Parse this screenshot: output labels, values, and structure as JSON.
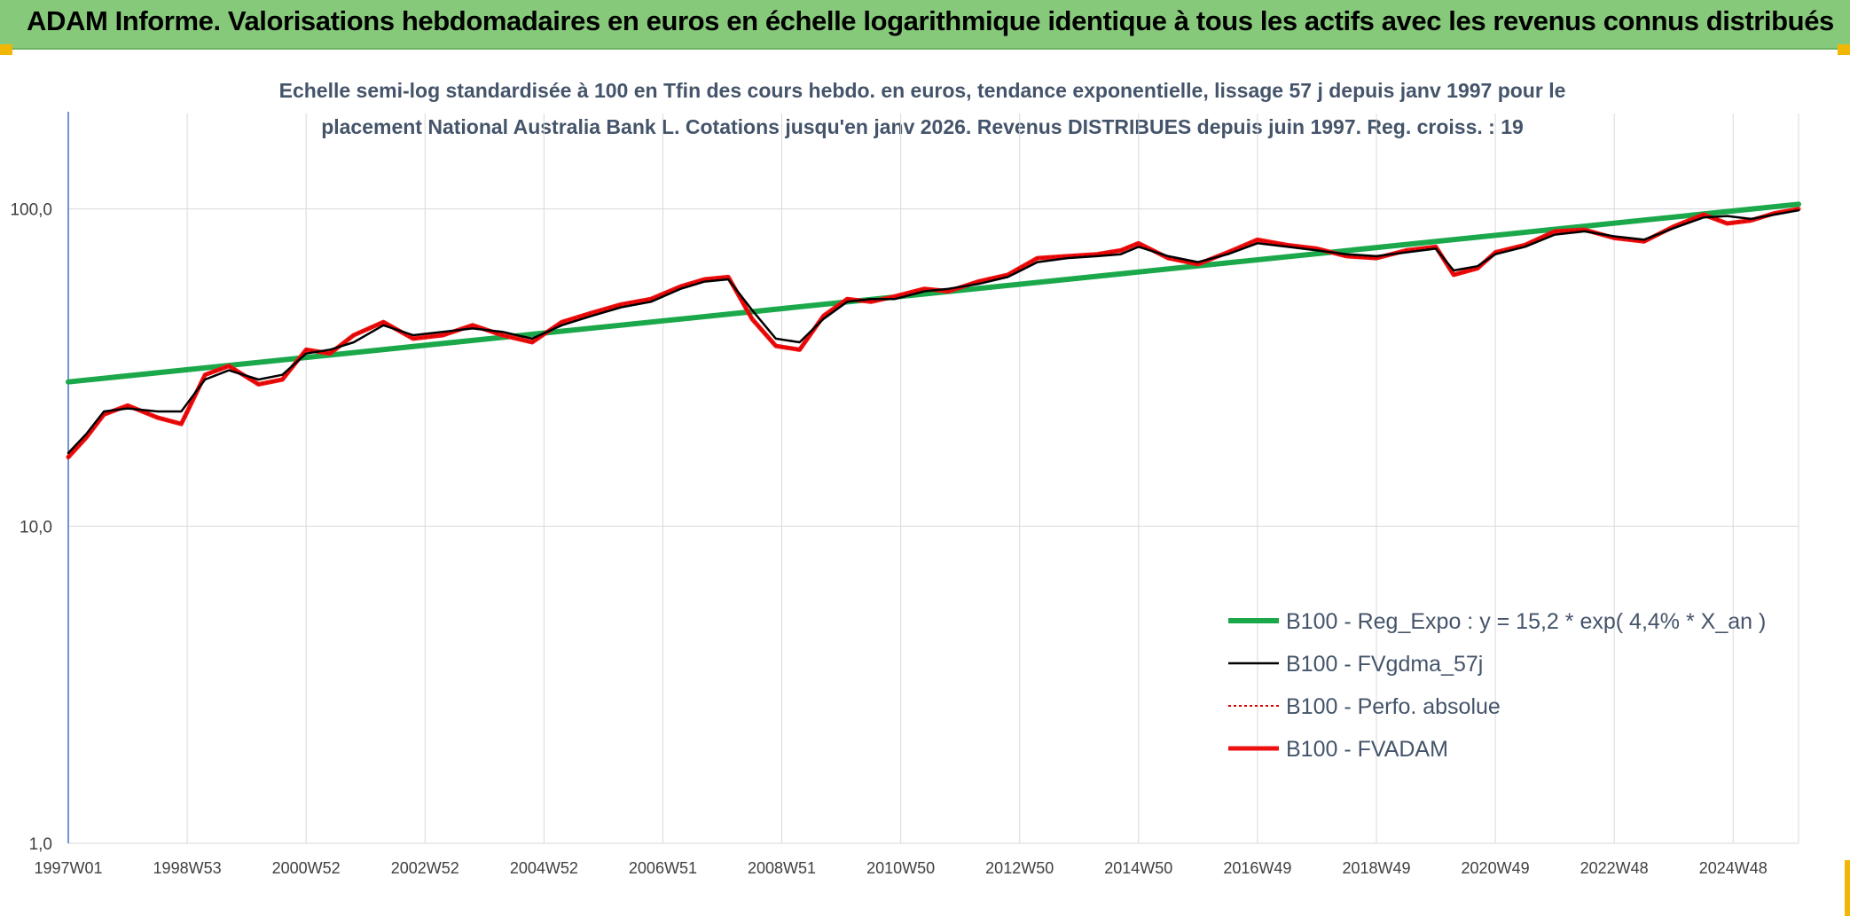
{
  "banner": {
    "title": "ADAM Informe. Valorisations hebdomadaires en euros en échelle logarithmique identique à tous les actifs avec les revenus connus distribués"
  },
  "colors": {
    "banner_bg": "#86c97a",
    "regression": "#1aa84a",
    "moving_avg": "#000000",
    "perfo": "#e00000",
    "fvadam": "#ee1111",
    "grid": "#d9d9d9",
    "corner": "#f2b705"
  },
  "chart_data": {
    "type": "line",
    "title_line1": "Echelle semi-log standardisée à 100 en Tfin des cours hebdo. en euros, tendance exponentielle, lissage 57 j depuis janv 1997 pour le",
    "title_line2": "placement National Australia Bank L. Cotations jusqu'en janv 2026. Revenus DISTRIBUES depuis juin 1997. Reg. croiss. : 19",
    "y_scale": "log",
    "ylim": [
      1,
      200
    ],
    "y_ticks": [
      {
        "value": 100,
        "label": "100,0"
      },
      {
        "value": 10,
        "label": "10,0"
      },
      {
        "value": 1,
        "label": "1,0"
      }
    ],
    "xlim": [
      1997.0,
      2026.1
    ],
    "x_ticks": [
      {
        "value": 1997.0,
        "label": "1997W01"
      },
      {
        "value": 1999.0,
        "label": "1998W53"
      },
      {
        "value": 2001.0,
        "label": "2000W52"
      },
      {
        "value": 2003.0,
        "label": "2002W52"
      },
      {
        "value": 2005.0,
        "label": "2004W52"
      },
      {
        "value": 2007.0,
        "label": "2006W51"
      },
      {
        "value": 2009.0,
        "label": "2008W51"
      },
      {
        "value": 2011.0,
        "label": "2010W50"
      },
      {
        "value": 2013.0,
        "label": "2012W50"
      },
      {
        "value": 2015.0,
        "label": "2014W50"
      },
      {
        "value": 2017.0,
        "label": "2016W49"
      },
      {
        "value": 2019.0,
        "label": "2018W49"
      },
      {
        "value": 2021.0,
        "label": "2020W49"
      },
      {
        "value": 2023.0,
        "label": "2022W48"
      },
      {
        "value": 2025.0,
        "label": "2024W48"
      }
    ],
    "legend_position": "bottom-right",
    "series": [
      {
        "name": "B100 - Reg_Expo : y = 15,2 * exp( 4,4% *  X_an )",
        "style": "thick-green",
        "x": [
          1997.0,
          2026.1
        ],
        "values": [
          28.5,
          103.5
        ]
      },
      {
        "name": "B100 - FVgdma_57j",
        "style": "thin-black",
        "x": [
          1997.0,
          1997.3,
          1997.6,
          1998.0,
          1998.5,
          1998.9,
          1999.3,
          1999.7,
          2000.2,
          2000.6,
          2001.0,
          2001.4,
          2001.8,
          2002.3,
          2002.8,
          2003.3,
          2003.8,
          2004.3,
          2004.8,
          2005.3,
          2005.8,
          2006.3,
          2006.8,
          2007.3,
          2007.7,
          2008.1,
          2008.5,
          2008.9,
          2009.3,
          2009.7,
          2010.1,
          2010.5,
          2010.9,
          2011.4,
          2011.8,
          2012.3,
          2012.8,
          2013.3,
          2013.8,
          2014.3,
          2014.7,
          2015.0,
          2015.5,
          2016.0,
          2016.5,
          2017.0,
          2017.5,
          2018.0,
          2018.5,
          2019.0,
          2019.5,
          2020.0,
          2020.3,
          2020.7,
          2021.0,
          2021.5,
          2022.0,
          2022.5,
          2023.0,
          2023.5,
          2024.0,
          2024.5,
          2024.9,
          2025.3,
          2025.7,
          2026.1
        ],
        "values": [
          17.0,
          19.5,
          23.0,
          23.5,
          23.0,
          23.0,
          29.0,
          31.0,
          29.0,
          30.0,
          35.0,
          36.0,
          38.0,
          43.0,
          40.0,
          41.0,
          42.0,
          41.0,
          39.0,
          43.0,
          46.0,
          49.0,
          51.0,
          56.0,
          59.0,
          60.0,
          48.0,
          39.0,
          38.0,
          45.0,
          51.0,
          52.0,
          52.0,
          55.0,
          56.0,
          58.0,
          61.0,
          68.0,
          70.0,
          71.0,
          72.0,
          76.0,
          71.0,
          68.0,
          72.0,
          78.0,
          76.0,
          74.0,
          72.0,
          71.0,
          73.0,
          75.0,
          64.0,
          66.0,
          72.0,
          76.0,
          83.0,
          85.0,
          82.0,
          80.0,
          87.0,
          94.0,
          95.0,
          93.0,
          96.0,
          99.0
        ]
      },
      {
        "name": "B100 - Perfo. absolue",
        "style": "dotted-red",
        "x": [
          1997.0,
          1997.3,
          1997.6,
          1998.0,
          1998.5,
          1998.9,
          1999.3,
          1999.7,
          2000.2,
          2000.6,
          2001.0,
          2001.4,
          2001.8,
          2002.3,
          2002.8,
          2003.3,
          2003.8,
          2004.3,
          2004.8,
          2005.3,
          2005.8,
          2006.3,
          2006.8,
          2007.3,
          2007.7,
          2008.1,
          2008.5,
          2008.9,
          2009.3,
          2009.7,
          2010.1,
          2010.5,
          2010.9,
          2011.4,
          2011.8,
          2012.3,
          2012.8,
          2013.3,
          2013.8,
          2014.3,
          2014.7,
          2015.0,
          2015.5,
          2016.0,
          2016.5,
          2017.0,
          2017.5,
          2018.0,
          2018.5,
          2019.0,
          2019.5,
          2020.0,
          2020.3,
          2020.7,
          2021.0,
          2021.5,
          2022.0,
          2022.5,
          2023.0,
          2023.5,
          2024.0,
          2024.5,
          2024.9,
          2025.3,
          2025.7,
          2026.1
        ],
        "values": [
          16.5,
          19.0,
          22.5,
          24.0,
          22.0,
          21.0,
          30.0,
          32.0,
          28.0,
          29.0,
          36.0,
          35.0,
          40.0,
          44.0,
          39.0,
          40.0,
          43.0,
          40.0,
          38.0,
          44.0,
          47.0,
          50.0,
          52.0,
          57.0,
          60.0,
          61.0,
          45.0,
          37.0,
          36.0,
          46.0,
          52.0,
          51.0,
          53.0,
          56.0,
          55.0,
          59.0,
          62.0,
          70.0,
          71.0,
          72.0,
          74.0,
          78.0,
          70.0,
          67.0,
          73.0,
          80.0,
          77.0,
          75.0,
          71.0,
          70.0,
          74.0,
          76.0,
          62.0,
          65.0,
          73.0,
          77.0,
          85.0,
          86.0,
          81.0,
          79.0,
          88.0,
          96.0,
          90.0,
          92.0,
          97.0,
          100.0
        ]
      },
      {
        "name": "B100 - FVADAM",
        "style": "thick-red",
        "x": [
          1997.0,
          1997.3,
          1997.6,
          1998.0,
          1998.5,
          1998.9,
          1999.3,
          1999.7,
          2000.2,
          2000.6,
          2001.0,
          2001.4,
          2001.8,
          2002.3,
          2002.8,
          2003.3,
          2003.8,
          2004.3,
          2004.8,
          2005.3,
          2005.8,
          2006.3,
          2006.8,
          2007.3,
          2007.7,
          2008.1,
          2008.5,
          2008.9,
          2009.3,
          2009.7,
          2010.1,
          2010.5,
          2010.9,
          2011.4,
          2011.8,
          2012.3,
          2012.8,
          2013.3,
          2013.8,
          2014.3,
          2014.7,
          2015.0,
          2015.5,
          2016.0,
          2016.5,
          2017.0,
          2017.5,
          2018.0,
          2018.5,
          2019.0,
          2019.5,
          2020.0,
          2020.3,
          2020.7,
          2021.0,
          2021.5,
          2022.0,
          2022.5,
          2023.0,
          2023.5,
          2024.0,
          2024.5,
          2024.9,
          2025.3,
          2025.7,
          2026.1
        ],
        "values": [
          16.5,
          19.0,
          22.5,
          24.0,
          22.0,
          21.0,
          30.0,
          32.0,
          28.0,
          29.0,
          36.0,
          35.0,
          40.0,
          44.0,
          39.0,
          40.0,
          43.0,
          40.0,
          38.0,
          44.0,
          47.0,
          50.0,
          52.0,
          57.0,
          60.0,
          61.0,
          45.0,
          37.0,
          36.0,
          46.0,
          52.0,
          51.0,
          53.0,
          56.0,
          55.0,
          59.0,
          62.0,
          70.0,
          71.0,
          72.0,
          74.0,
          78.0,
          70.0,
          67.0,
          73.0,
          80.0,
          77.0,
          75.0,
          71.0,
          70.0,
          74.0,
          76.0,
          62.0,
          65.0,
          73.0,
          77.0,
          85.0,
          86.0,
          81.0,
          79.0,
          88.0,
          96.0,
          90.0,
          92.0,
          97.0,
          100.0
        ]
      }
    ]
  }
}
